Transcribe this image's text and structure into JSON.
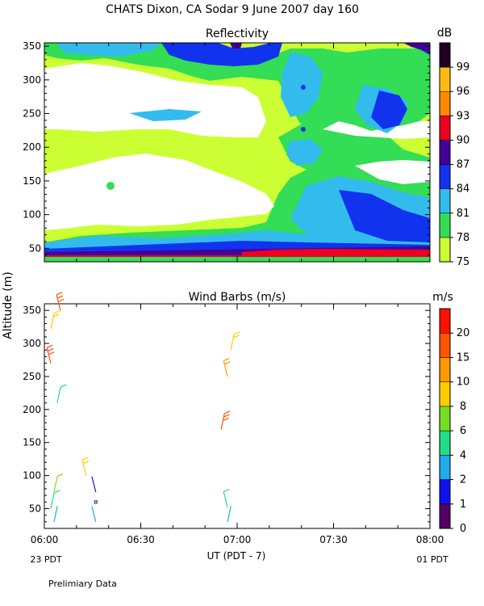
{
  "header": {
    "title": "CHATS Dixon, CA  Sodar   9 June 2007  day 160",
    "footer_note": "Prelimiary Data"
  },
  "x_axis": {
    "ticks": [
      "06:00",
      "06:30",
      "07:00",
      "07:30",
      "08:00"
    ],
    "label": "UT  (PDT - 7)",
    "left_date": "23 PDT",
    "right_date": "01 PDT"
  },
  "colors": {
    "refl_scale": [
      "#ccff33",
      "#33dd55",
      "#33bbee",
      "#1133ee",
      "#440099",
      "#ee0022",
      "#ff8800",
      "#ffbb11",
      "#220022"
    ],
    "wind_scale": [
      "#550066",
      "#1111ee",
      "#22aaee",
      "#22dd88",
      "#77dd22",
      "#ffcc00",
      "#ff9900",
      "#ff5500",
      "#ff1100"
    ]
  },
  "chart_data": [
    {
      "type": "heatmap",
      "title": "Reflectivity",
      "colorbar_label": "dB",
      "colorbar_ticks": [
        "75",
        "78",
        "81",
        "84",
        "87",
        "90",
        "93",
        "96",
        "99"
      ],
      "x_range": [
        "06:00",
        "08:00"
      ],
      "ylim": [
        30,
        355
      ],
      "y_ticks": [
        50,
        100,
        150,
        200,
        250,
        300,
        350
      ],
      "note": "filled contour field of sodar reflectivity vs time and altitude"
    },
    {
      "type": "scatter",
      "title": "Wind Barbs (m/s)",
      "ylabel": "Altitude (m)",
      "colorbar_label": "m/s",
      "colorbar_ticks": [
        "0",
        "1",
        "2",
        "4",
        "6",
        "8",
        "10",
        "15",
        "20"
      ],
      "x_range": [
        "06:00",
        "08:00"
      ],
      "ylim": [
        20,
        360
      ],
      "y_ticks": [
        50,
        100,
        150,
        200,
        250,
        300,
        350
      ],
      "barbs": [
        {
          "time": "06:05",
          "alt": 350,
          "speed": 18
        },
        {
          "time": "06:02",
          "alt": 322,
          "speed": 8
        },
        {
          "time": "06:02",
          "alt": 270,
          "speed": 15
        },
        {
          "time": "06:04",
          "alt": 210,
          "speed": 5
        },
        {
          "time": "06:13",
          "alt": 100,
          "speed": 8
        },
        {
          "time": "06:03",
          "alt": 75,
          "speed": 6
        },
        {
          "time": "06:16",
          "alt": 75,
          "speed": 1
        },
        {
          "time": "06:02",
          "alt": 50,
          "speed": 4
        },
        {
          "time": "06:16",
          "alt": 60,
          "speed": 0
        },
        {
          "time": "06:03",
          "alt": 30,
          "speed": 2
        },
        {
          "time": "06:16",
          "alt": 30,
          "speed": 2
        },
        {
          "time": "06:58",
          "alt": 290,
          "speed": 8
        },
        {
          "time": "06:57",
          "alt": 250,
          "speed": 10
        },
        {
          "time": "06:55",
          "alt": 170,
          "speed": 18
        },
        {
          "time": "06:57",
          "alt": 52,
          "speed": 4
        },
        {
          "time": "06:57",
          "alt": 30,
          "speed": 2
        }
      ]
    }
  ]
}
